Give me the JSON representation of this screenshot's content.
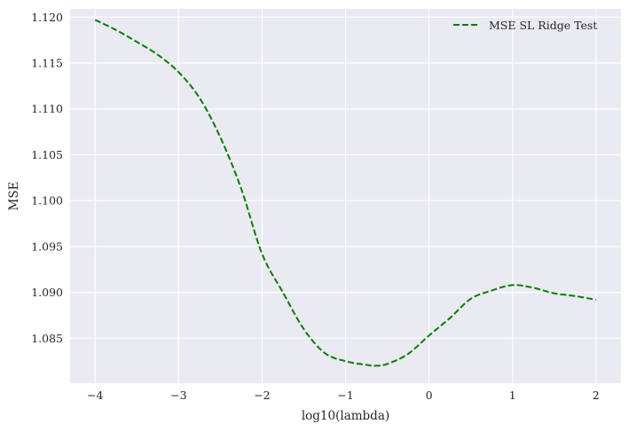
{
  "chart_data": {
    "type": "line",
    "title": "",
    "xlabel": "log10(lambda)",
    "ylabel": "MSE",
    "xlim": [
      -4.3,
      2.3
    ],
    "ylim": [
      1.0801,
      1.1209
    ],
    "xticks": [
      -4,
      -3,
      -2,
      -1,
      0,
      1,
      2
    ],
    "xtick_labels": [
      "−4",
      "−3",
      "−2",
      "−1",
      "0",
      "1",
      "2"
    ],
    "yticks": [
      1.085,
      1.09,
      1.095,
      1.1,
      1.105,
      1.11,
      1.115,
      1.12
    ],
    "ytick_labels": [
      "1.085",
      "1.090",
      "1.095",
      "1.100",
      "1.105",
      "1.110",
      "1.115",
      "1.120"
    ],
    "grid": true,
    "legend_position": "top-right",
    "colors": {
      "background": "#eaeaf2",
      "grid": "#ffffff",
      "series": "#008000"
    },
    "series": [
      {
        "name": "MSE SL Ridge Test",
        "style": "dashed",
        "x": [
          -4,
          -3.75,
          -3.5,
          -3.25,
          -3,
          -2.75,
          -2.5,
          -2.25,
          -2,
          -1.75,
          -1.5,
          -1.25,
          -1,
          -0.75,
          -0.65,
          -0.5,
          -0.25,
          0,
          0.25,
          0.5,
          0.75,
          1,
          1.25,
          1.5,
          1.75,
          2
        ],
        "values": [
          1.1197,
          1.1186,
          1.1173,
          1.1159,
          1.114,
          1.1112,
          1.1069,
          1.1013,
          1.0942,
          1.09,
          1.086,
          1.0834,
          1.0825,
          1.0821,
          1.082,
          1.0822,
          1.0833,
          1.0853,
          1.0872,
          1.0893,
          1.0902,
          1.0908,
          1.0905,
          1.0899,
          1.0896,
          1.0892
        ]
      }
    ]
  }
}
